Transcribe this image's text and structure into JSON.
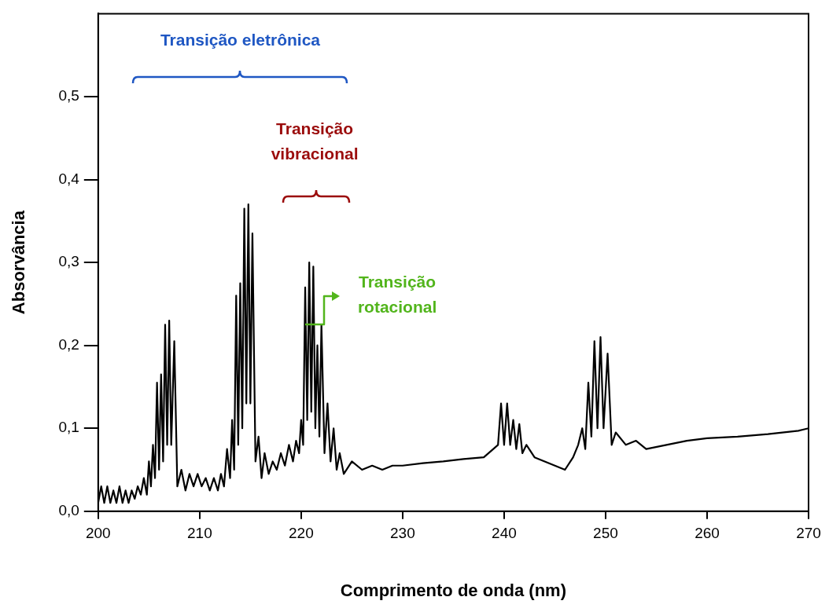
{
  "chart_data": {
    "type": "line",
    "xlabel": "Comprimento de onda (nm)",
    "ylabel": "Absorvância",
    "x": [
      200.0,
      200.3,
      200.6,
      200.9,
      201.2,
      201.5,
      201.8,
      202.1,
      202.4,
      202.7,
      203.0,
      203.3,
      203.6,
      203.9,
      204.2,
      204.5,
      204.8,
      205.0,
      205.2,
      205.4,
      205.6,
      205.8,
      206.0,
      206.2,
      206.4,
      206.6,
      206.8,
      207.0,
      207.2,
      207.5,
      207.8,
      208.2,
      208.6,
      209.0,
      209.4,
      209.8,
      210.2,
      210.6,
      211.0,
      211.4,
      211.8,
      212.1,
      212.4,
      212.7,
      213.0,
      213.2,
      213.4,
      213.6,
      213.8,
      214.0,
      214.2,
      214.4,
      214.6,
      214.8,
      215.0,
      215.2,
      215.5,
      215.8,
      216.1,
      216.4,
      216.8,
      217.2,
      217.6,
      218.0,
      218.4,
      218.8,
      219.2,
      219.5,
      219.8,
      220.0,
      220.2,
      220.4,
      220.6,
      220.8,
      221.0,
      221.2,
      221.4,
      221.6,
      221.8,
      222.0,
      222.3,
      222.6,
      222.9,
      223.2,
      223.5,
      223.8,
      224.2,
      225,
      226,
      227,
      228,
      229,
      230,
      232,
      234,
      236,
      238,
      239.4,
      239.7,
      240.0,
      240.3,
      240.6,
      240.9,
      241.2,
      241.5,
      241.8,
      242.2,
      243,
      244,
      245,
      246,
      246.8,
      247.3,
      247.7,
      248.0,
      248.3,
      248.6,
      248.9,
      249.2,
      249.5,
      249.8,
      250.2,
      250.6,
      251,
      252,
      253,
      254,
      256,
      258,
      260,
      263,
      266,
      269,
      270
    ],
    "series": [
      {
        "color": "#000000",
        "values": [
          0.01,
          0.03,
          0.01,
          0.03,
          0.01,
          0.025,
          0.01,
          0.03,
          0.01,
          0.025,
          0.01,
          0.025,
          0.015,
          0.03,
          0.02,
          0.04,
          0.02,
          0.06,
          0.03,
          0.08,
          0.04,
          0.155,
          0.05,
          0.165,
          0.06,
          0.225,
          0.08,
          0.23,
          0.08,
          0.205,
          0.03,
          0.05,
          0.025,
          0.045,
          0.03,
          0.045,
          0.03,
          0.04,
          0.025,
          0.04,
          0.025,
          0.045,
          0.03,
          0.075,
          0.04,
          0.11,
          0.05,
          0.26,
          0.08,
          0.275,
          0.1,
          0.365,
          0.13,
          0.37,
          0.13,
          0.335,
          0.06,
          0.09,
          0.04,
          0.07,
          0.045,
          0.06,
          0.05,
          0.07,
          0.055,
          0.08,
          0.06,
          0.085,
          0.07,
          0.11,
          0.08,
          0.27,
          0.11,
          0.3,
          0.12,
          0.295,
          0.1,
          0.2,
          0.09,
          0.225,
          0.07,
          0.13,
          0.06,
          0.1,
          0.05,
          0.07,
          0.045,
          0.06,
          0.05,
          0.055,
          0.05,
          0.055,
          0.055,
          0.058,
          0.06,
          0.063,
          0.065,
          0.08,
          0.13,
          0.08,
          0.13,
          0.08,
          0.11,
          0.075,
          0.105,
          0.07,
          0.08,
          0.065,
          0.06,
          0.055,
          0.05,
          0.065,
          0.08,
          0.1,
          0.075,
          0.155,
          0.09,
          0.205,
          0.1,
          0.21,
          0.1,
          0.19,
          0.08,
          0.095,
          0.08,
          0.085,
          0.075,
          0.08,
          0.085,
          0.088,
          0.09,
          0.093,
          0.097,
          0.1
        ]
      }
    ],
    "xlim": [
      200,
      270
    ],
    "xticks": [
      200,
      210,
      220,
      230,
      240,
      250,
      260,
      270
    ],
    "ylim": [
      0,
      0.6
    ],
    "yticks": [
      {
        "value": 0,
        "label": "0,0"
      },
      {
        "value": 0.1,
        "label": "0,1"
      },
      {
        "value": 0.2,
        "label": "0,2"
      },
      {
        "value": 0.3,
        "label": "0,3"
      },
      {
        "value": 0.4,
        "label": "0,4"
      },
      {
        "value": 0.5,
        "label": "0,5"
      }
    ],
    "grid": false,
    "legend": false,
    "marker": "none",
    "line_style": "solid",
    "annotations": [
      "Transição eletrônica",
      "Transição vibracional",
      "Transição rotacional"
    ]
  }
}
